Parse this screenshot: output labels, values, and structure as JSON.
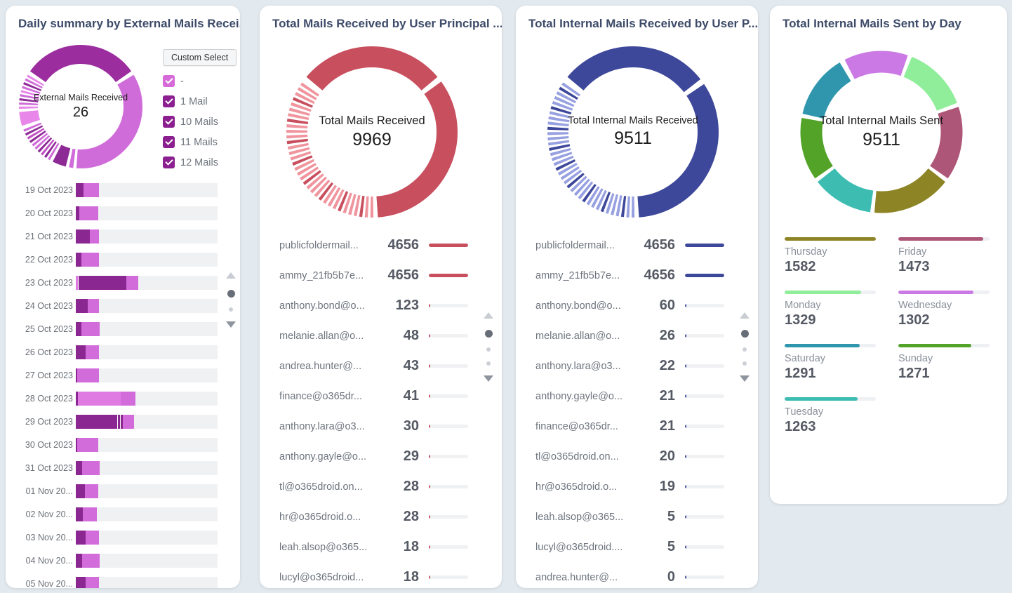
{
  "page": {
    "background": "#e3eaef"
  },
  "cards": {
    "daily_summary": {
      "title": "Daily summary by External Mails Recei...",
      "donut": {
        "center_label": "External Mails Received",
        "center_value": "26",
        "size": 180,
        "r": 74.5,
        "thickness": 27,
        "start": 305,
        "segments": [
          {
            "color": "#9c2d9f",
            "deg": 110,
            "pad": 4
          },
          {
            "color": "#d06cd9",
            "deg": 125,
            "pad": 3
          },
          {
            "color": "#d06cd9",
            "deg": 4,
            "pad": 3
          },
          {
            "color": "#8e2a96",
            "deg": 13,
            "pad": 3
          },
          {
            "deg": 40,
            "pad": 2,
            "stripes": 10,
            "colors": [
              "#d06cd9",
              "#8e2a96",
              "#c250c4",
              "#8e2a96",
              "#d06cd9"
            ]
          },
          {
            "color": "#e886ea",
            "deg": 13,
            "pad": 3
          },
          {
            "deg": 35,
            "pad": 2,
            "stripes": 9,
            "colors": [
              "#e886ea",
              "#d06cd9",
              "#8e2a96",
              "#d06cd9"
            ]
          }
        ]
      },
      "custom_select": {
        "button_label": "Custom Select",
        "options": [
          {
            "label": "-",
            "color": "#d66ad8",
            "checked": true
          },
          {
            "label": "1 Mail",
            "color": "#8b1f8f",
            "checked": true
          },
          {
            "label": "10 Mails",
            "color": "#8b1f8f",
            "checked": true
          },
          {
            "label": "11 Mails",
            "color": "#8b1f8f",
            "checked": true
          },
          {
            "label": "12 Mails",
            "color": "#8b1f8f",
            "checked": true
          }
        ]
      },
      "bar_rows": [
        {
          "label": "19 Oct 2023",
          "segments": [
            {
              "color": "#8b2791",
              "pct": 5.5
            },
            {
              "color": "#d36cdb",
              "pct": 11
            }
          ]
        },
        {
          "label": "20 Oct 2023",
          "segments": [
            {
              "color": "#8b2791",
              "pct": 2.5
            },
            {
              "color": "#d36cdb",
              "pct": 13.5
            }
          ]
        },
        {
          "label": "21 Oct 2023",
          "segments": [
            {
              "color": "#8b2791",
              "pct": 10
            },
            {
              "color": "#d36cdb",
              "pct": 6.5
            }
          ]
        },
        {
          "label": "22 Oct 2023",
          "segments": [
            {
              "color": "#8b2791",
              "pct": 4
            },
            {
              "color": "#d36cdb",
              "pct": 12.5
            }
          ]
        },
        {
          "label": "23 Oct 2023",
          "segments": [
            {
              "color": "#e07ae3",
              "pct": 1.5
            },
            {
              "color": "#ffffff",
              "pct": 0.4
            },
            {
              "color": "#8b2791",
              "pct": 34
            },
            {
              "color": "#d36cdb",
              "pct": 8
            }
          ]
        },
        {
          "label": "24 Oct 2023",
          "segments": [
            {
              "color": "#8b2791",
              "pct": 8.5
            },
            {
              "color": "#d36cdb",
              "pct": 8
            }
          ]
        },
        {
          "label": "25 Oct 2023",
          "segments": [
            {
              "color": "#8b2791",
              "pct": 4
            },
            {
              "color": "#d36cdb",
              "pct": 13
            }
          ]
        },
        {
          "label": "26 Oct 2023",
          "segments": [
            {
              "color": "#8b2791",
              "pct": 7
            },
            {
              "color": "#d36cdb",
              "pct": 9.5
            }
          ]
        },
        {
          "label": "27 Oct 2023",
          "segments": [
            {
              "color": "#8b2791",
              "pct": 1
            },
            {
              "color": "#d36cdb",
              "pct": 15.5
            }
          ]
        },
        {
          "label": "28 Oct 2023",
          "segments": [
            {
              "color": "#8b2791",
              "pct": 1.5
            },
            {
              "color": "#e07ae3",
              "pct": 30
            },
            {
              "color": "#d36cdb",
              "pct": 10.5
            }
          ]
        },
        {
          "label": "29 Oct 2023",
          "segments": [
            {
              "color": "#8b2791",
              "pct": 29
            },
            {
              "color": "#ffffff",
              "pct": 0.5
            },
            {
              "color": "#8b2791",
              "pct": 1.5
            },
            {
              "color": "#ffffff",
              "pct": 0.5
            },
            {
              "color": "#8b2791",
              "pct": 1.5
            },
            {
              "color": "#d36cdb",
              "pct": 8
            }
          ]
        },
        {
          "label": "30 Oct 2023",
          "segments": [
            {
              "color": "#8b2791",
              "pct": 1
            },
            {
              "color": "#d36cdb",
              "pct": 15
            }
          ]
        },
        {
          "label": "31 Oct 2023",
          "segments": [
            {
              "color": "#8b2791",
              "pct": 4.5
            },
            {
              "color": "#d36cdb",
              "pct": 12.5
            }
          ]
        },
        {
          "label": "01 Nov 20...",
          "segments": [
            {
              "color": "#8b2791",
              "pct": 6.5
            },
            {
              "color": "#d36cdb",
              "pct": 9.5
            }
          ]
        },
        {
          "label": "02 Nov 20...",
          "segments": [
            {
              "color": "#8b2791",
              "pct": 5
            },
            {
              "color": "#d36cdb",
              "pct": 10
            }
          ]
        },
        {
          "label": "03 Nov 20...",
          "segments": [
            {
              "color": "#8b2791",
              "pct": 7
            },
            {
              "color": "#d36cdb",
              "pct": 9.5
            }
          ]
        },
        {
          "label": "04 Nov 20...",
          "segments": [
            {
              "color": "#8b2791",
              "pct": 4.5
            },
            {
              "color": "#d36cdb",
              "pct": 12.5
            }
          ]
        },
        {
          "label": "05 Nov 20...",
          "segments": [
            {
              "color": "#8b2791",
              "pct": 7
            },
            {
              "color": "#d36cdb",
              "pct": 9.5
            }
          ]
        }
      ]
    },
    "total_mails": {
      "title": "Total Mails Received by User Principal ...",
      "accent": "#c84f5e",
      "donut": {
        "center_label": "Total Mails Received",
        "center_value": "9969",
        "size": 250,
        "r": 107,
        "thickness": 30,
        "start": 310,
        "segments": [
          {
            "color": "#c84f5e",
            "deg": 100,
            "pad": 4
          },
          {
            "color": "#c84f5e",
            "deg": 122,
            "pad": 3
          },
          {
            "deg": 128,
            "pad": 3,
            "stripes": 34,
            "colors": [
              "#f0959e",
              "#f0959e",
              "#c84f5e",
              "#f0959e"
            ]
          }
        ]
      },
      "rows": [
        {
          "label": "publicfoldermail...",
          "value": "4656",
          "pct": 100
        },
        {
          "label": "ammy_21fb5b7e...",
          "value": "4656",
          "pct": 100
        },
        {
          "label": "anthony.bond@o...",
          "value": "123",
          "pct": 3
        },
        {
          "label": "melanie.allan@o...",
          "value": "48",
          "pct": 3
        },
        {
          "label": "andrea.hunter@...",
          "value": "43",
          "pct": 3
        },
        {
          "label": "finance@o365dr...",
          "value": "41",
          "pct": 3
        },
        {
          "label": "anthony.lara@o3...",
          "value": "30",
          "pct": 3
        },
        {
          "label": "anthony.gayle@o...",
          "value": "29",
          "pct": 3
        },
        {
          "label": "tl@o365droid.on...",
          "value": "28",
          "pct": 3
        },
        {
          "label": "hr@o365droid.o...",
          "value": "28",
          "pct": 3
        },
        {
          "label": "leah.alsop@o365...",
          "value": "18",
          "pct": 3
        },
        {
          "label": "lucyl@o365droid...",
          "value": "18",
          "pct": 3
        }
      ]
    },
    "internal_received": {
      "title": "Total Internal Mails Received by User P...",
      "accent": "#3e489a",
      "donut": {
        "center_label": "Total Internal Mails Received",
        "center_value": "9511",
        "size": 250,
        "r": 107,
        "thickness": 30,
        "start": 310,
        "segments": [
          {
            "color": "#3e489a",
            "deg": 102,
            "pad": 4
          },
          {
            "color": "#3e489a",
            "deg": 120,
            "pad": 3
          },
          {
            "deg": 128,
            "pad": 3,
            "stripes": 36,
            "colors": [
              "#97a0e0",
              "#97a0e0",
              "#3e489a",
              "#97a0e0"
            ]
          }
        ]
      },
      "rows": [
        {
          "label": "publicfoldermail...",
          "value": "4656",
          "pct": 100
        },
        {
          "label": "ammy_21fb5b7e...",
          "value": "4656",
          "pct": 100
        },
        {
          "label": "anthony.bond@o...",
          "value": "60",
          "pct": 3
        },
        {
          "label": "melanie.allan@o...",
          "value": "26",
          "pct": 3
        },
        {
          "label": "anthony.lara@o3...",
          "value": "22",
          "pct": 3
        },
        {
          "label": "anthony.gayle@o...",
          "value": "21",
          "pct": 3
        },
        {
          "label": "finance@o365dr...",
          "value": "21",
          "pct": 3
        },
        {
          "label": "tl@o365droid.on...",
          "value": "20",
          "pct": 3
        },
        {
          "label": "hr@o365droid.o...",
          "value": "19",
          "pct": 3
        },
        {
          "label": "leah.alsop@o365...",
          "value": "5",
          "pct": 3
        },
        {
          "label": "lucyl@o365droid....",
          "value": "5",
          "pct": 3
        },
        {
          "label": "andrea.hunter@...",
          "value": "0",
          "pct": 3
        }
      ]
    },
    "internal_sent": {
      "title": "Total Internal Mails Sent by Day",
      "donut": {
        "center_label": "Total Internal Mails Sent",
        "center_value": "9511",
        "size": 240,
        "r": 100,
        "thickness": 31,
        "start": 333,
        "segments": [
          {
            "color": "#cb79e5",
            "deg": 46,
            "pad": 3
          },
          {
            "color": "#90ee9b",
            "deg": 47,
            "pad": 3
          },
          {
            "color": "#ae5678",
            "deg": 53,
            "pad": 3
          },
          {
            "color": "#8d8525",
            "deg": 57,
            "pad": 3
          },
          {
            "color": "#3dbdb2",
            "deg": 44,
            "pad": 3
          },
          {
            "color": "#52a328",
            "deg": 45,
            "pad": 3
          },
          {
            "color": "#2f96ad",
            "deg": 46,
            "pad": 4
          }
        ]
      },
      "legend": [
        {
          "label": "Thursday",
          "value": "1582",
          "color": "#8d8525",
          "pct": 100
        },
        {
          "label": "Friday",
          "value": "1473",
          "color": "#ae5678",
          "pct": 93
        },
        {
          "label": "Monday",
          "value": "1329",
          "color": "#90ee9b",
          "pct": 84
        },
        {
          "label": "Wednesday",
          "value": "1302",
          "color": "#cb79e5",
          "pct": 82
        },
        {
          "label": "Saturday",
          "value": "1291",
          "color": "#2f96ad",
          "pct": 82
        },
        {
          "label": "Sunday",
          "value": "1271",
          "color": "#52a328",
          "pct": 80
        },
        {
          "label": "Tuesday",
          "value": "1263",
          "color": "#3dbdb2",
          "pct": 80
        }
      ]
    }
  },
  "chart_data": [
    {
      "type": "pie",
      "title": "Daily summary by External Mails Recei...",
      "center_label": "External Mails Received",
      "center_value": 26,
      "legend_entries": [
        "-",
        "1 Mail",
        "10 Mails",
        "11 Mails",
        "12 Mails"
      ],
      "bar_categories": [
        "19 Oct 2023",
        "20 Oct 2023",
        "21 Oct 2023",
        "22 Oct 2023",
        "23 Oct 2023",
        "24 Oct 2023",
        "25 Oct 2023",
        "26 Oct 2023",
        "27 Oct 2023",
        "28 Oct 2023",
        "29 Oct 2023",
        "30 Oct 2023",
        "31 Oct 2023",
        "01 Nov 20...",
        "02 Nov 20...",
        "03 Nov 20...",
        "04 Nov 20...",
        "05 Nov 20..."
      ],
      "note": "stacked horizontal bars per day; numeric values not labeled on screen, segment widths estimated in cards.daily_summary.bar_rows"
    },
    {
      "type": "pie",
      "title": "Total Mails Received by User Principal ...",
      "center_label": "Total Mails Received",
      "center_value": 9969,
      "categories": [
        "publicfoldermail...",
        "ammy_21fb5b7e...",
        "anthony.bond@o...",
        "melanie.allan@o...",
        "andrea.hunter@...",
        "finance@o365dr...",
        "anthony.lara@o3...",
        "anthony.gayle@o...",
        "tl@o365droid.on...",
        "hr@o365droid.o...",
        "leah.alsop@o365...",
        "lucyl@o365droid..."
      ],
      "values": [
        4656,
        4656,
        123,
        48,
        43,
        41,
        30,
        29,
        28,
        28,
        18,
        18
      ]
    },
    {
      "type": "pie",
      "title": "Total Internal Mails Received by User P...",
      "center_label": "Total Internal Mails Received",
      "center_value": 9511,
      "categories": [
        "publicfoldermail...",
        "ammy_21fb5b7e...",
        "anthony.bond@o...",
        "melanie.allan@o...",
        "anthony.lara@o3...",
        "anthony.gayle@o...",
        "finance@o365dr...",
        "tl@o365droid.on...",
        "hr@o365droid.o...",
        "leah.alsop@o365...",
        "lucyl@o365droid....",
        "andrea.hunter@..."
      ],
      "values": [
        4656,
        4656,
        60,
        26,
        22,
        21,
        21,
        20,
        19,
        5,
        5,
        0
      ]
    },
    {
      "type": "pie",
      "title": "Total Internal Mails Sent by Day",
      "center_label": "Total Internal Mails Sent",
      "center_value": 9511,
      "categories": [
        "Thursday",
        "Friday",
        "Monday",
        "Wednesday",
        "Saturday",
        "Sunday",
        "Tuesday"
      ],
      "values": [
        1582,
        1473,
        1329,
        1302,
        1291,
        1271,
        1263
      ]
    }
  ]
}
